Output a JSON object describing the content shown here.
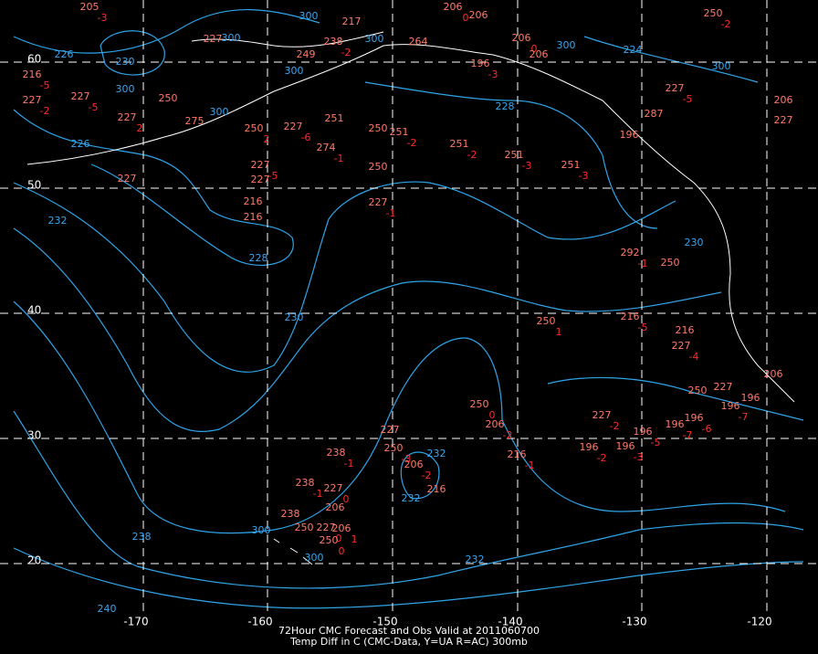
{
  "map": {
    "caption": [
      "72Hour CMC Forecast and Obs Valid at 2011060700",
      "Temp Diff in C (CMC-Data, Y=UA R=AC) 300mb"
    ],
    "lat_labels": [
      60,
      50,
      40,
      30,
      20
    ],
    "lon_labels": [
      -170,
      -160,
      -150,
      -140,
      -130,
      -120
    ],
    "contour_labels": [
      226,
      230,
      300,
      226,
      232,
      228,
      230,
      238,
      240,
      232,
      232,
      232,
      228,
      224,
      230,
      300,
      300,
      300,
      300,
      300,
      300,
      300,
      300,
      300
    ],
    "stations": [
      {
        "value": 205,
        "diff": -3
      },
      {
        "value": 217
      },
      {
        "value": 238,
        "diff": -2
      },
      {
        "value": 264
      },
      {
        "value": 206,
        "diff": 0
      },
      {
        "value": 206
      },
      {
        "value": 206,
        "diff": 0
      },
      {
        "value": 196,
        "diff": -3
      },
      {
        "value": 206
      },
      {
        "value": 216,
        "diff": -5
      },
      {
        "value": 227,
        "diff": -2
      },
      {
        "value": 227,
        "diff": -5
      },
      {
        "value": 227,
        "diff": 2
      },
      {
        "value": 250
      },
      {
        "value": 275
      },
      {
        "value": 227
      },
      {
        "value": 249
      },
      {
        "value": 250,
        "diff": 2
      },
      {
        "value": 227,
        "diff": -6
      },
      {
        "value": 251
      },
      {
        "value": 274,
        "diff": -1
      },
      {
        "value": 250
      },
      {
        "value": 251,
        "diff": -2
      },
      {
        "value": 251,
        "diff": -2
      },
      {
        "value": 251,
        "diff": -3
      },
      {
        "value": 251,
        "diff": -3
      },
      {
        "value": 250
      },
      {
        "value": 227,
        "diff": -1
      },
      {
        "value": 227,
        "diff": -5
      },
      {
        "value": 227
      },
      {
        "value": 216
      },
      {
        "value": 216
      },
      {
        "value": 227
      },
      {
        "value": 292,
        "diff": -1
      },
      {
        "value": 250
      },
      {
        "value": 250,
        "diff": 1
      },
      {
        "value": 216,
        "diff": -5
      },
      {
        "value": 216
      },
      {
        "value": 227,
        "diff": -4
      },
      {
        "value": 250,
        "diff": 0
      },
      {
        "value": 206,
        "diff": -2
      },
      {
        "value": 227
      },
      {
        "value": 250,
        "diff": -3
      },
      {
        "value": 216,
        "diff": -1
      },
      {
        "value": 206,
        "diff": -2
      },
      {
        "value": 216
      },
      {
        "value": 238,
        "diff": -1
      },
      {
        "value": 238,
        "diff": -1
      },
      {
        "value": 227,
        "diff": 0
      },
      {
        "value": 238
      },
      {
        "value": 250
      },
      {
        "value": 227,
        "diff": 0
      },
      {
        "value": 206,
        "diff": 1
      },
      {
        "value": 250,
        "diff": 0
      },
      {
        "value": 206
      },
      {
        "value": 227,
        "diff": -2
      },
      {
        "value": 196,
        "diff": -2
      },
      {
        "value": 196,
        "diff": -3
      },
      {
        "value": 196,
        "diff": -5
      },
      {
        "value": 196,
        "diff": -7
      },
      {
        "value": 196,
        "diff": -6
      },
      {
        "value": 250
      },
      {
        "value": 227
      },
      {
        "value": 196
      },
      {
        "value": 206
      },
      {
        "value": 196,
        "diff": -7
      },
      {
        "value": 227,
        "diff": -5
      },
      {
        "value": 250,
        "diff": -2
      },
      {
        "value": 287
      },
      {
        "value": 196
      },
      {
        "value": 206
      },
      {
        "value": 227
      }
    ]
  }
}
